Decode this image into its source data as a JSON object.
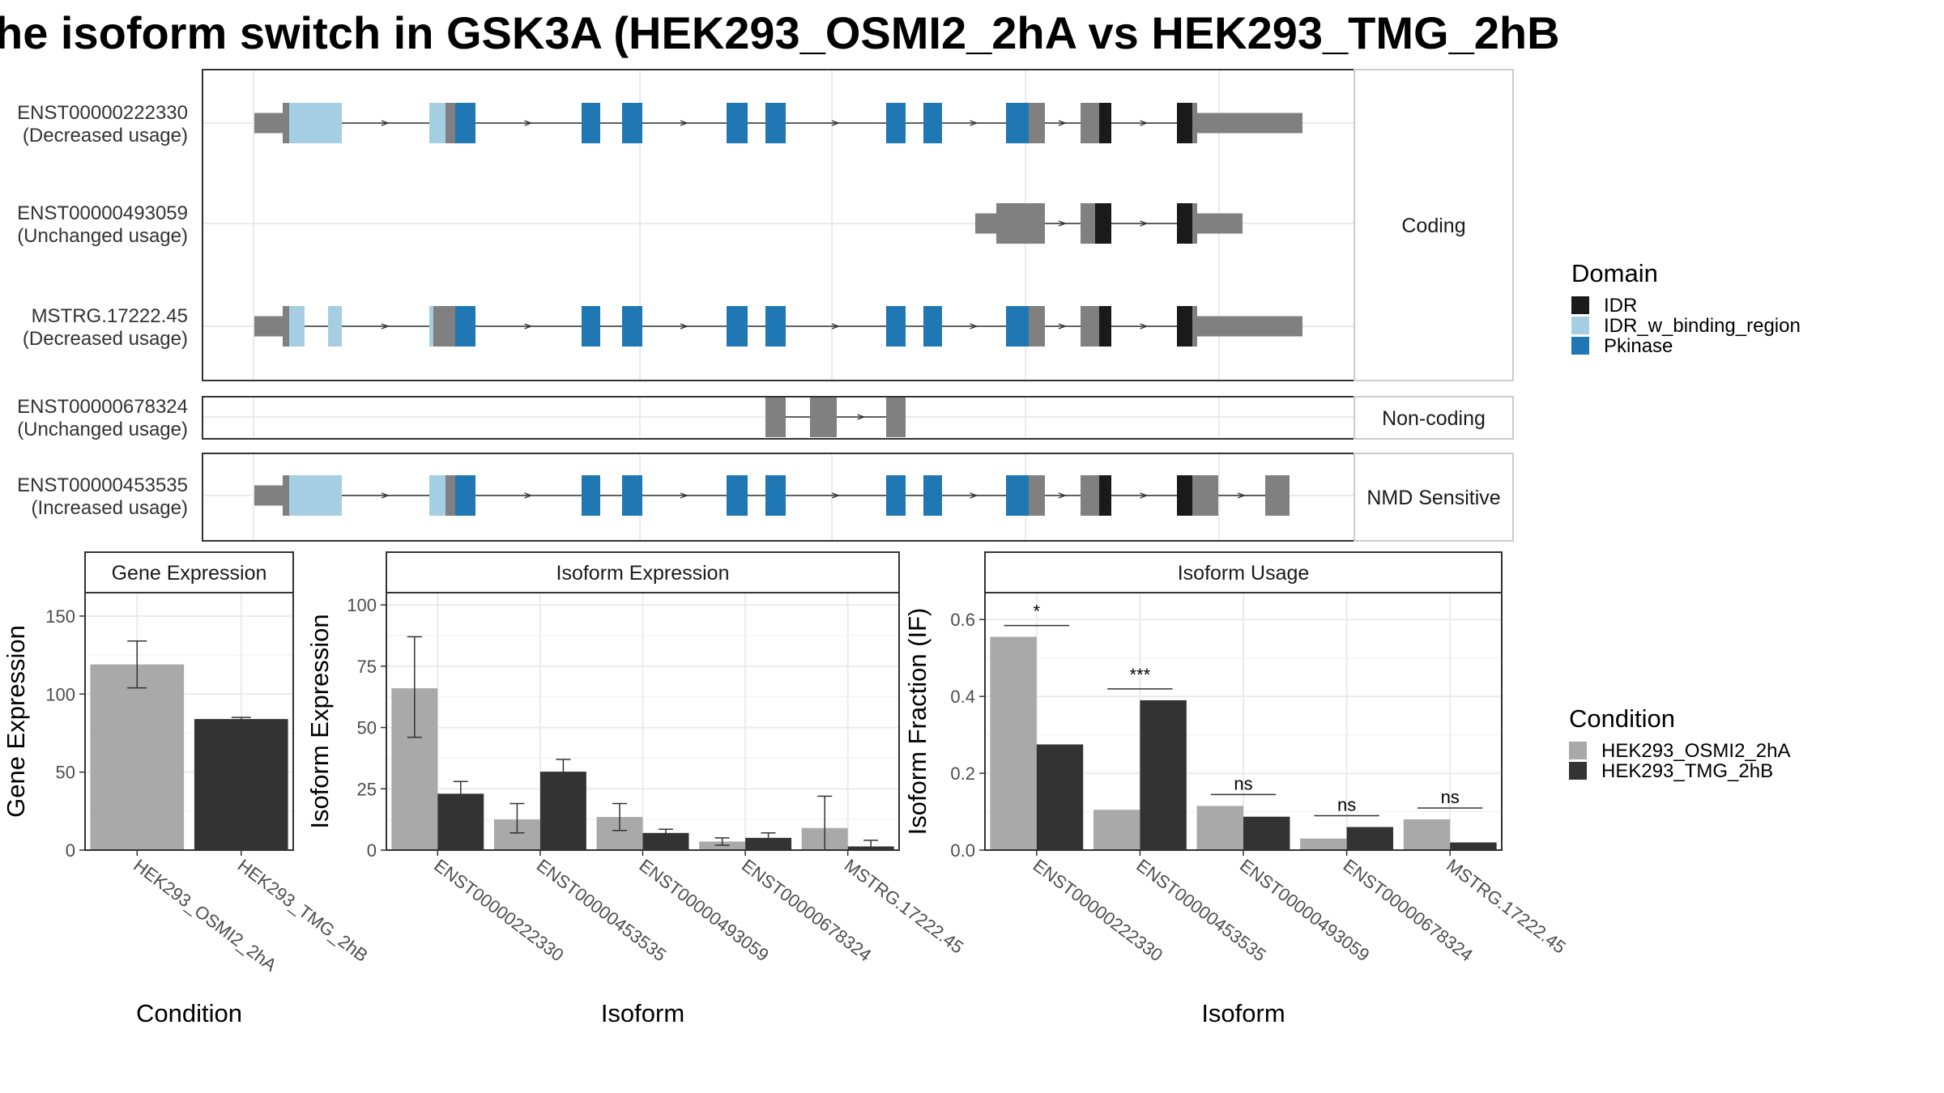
{
  "title": "he isoform switch in GSK3A (HEK293_OSMI2_2hA vs HEK293_TMG_2hB",
  "colors": {
    "IDR": "#1a1a1a",
    "IDR_w_binding_region": "#a6cee3",
    "Pkinase": "#1f78b4",
    "noncoding_exon": "#808080",
    "HEK293_OSMI2_2hA": "#a9a9a9",
    "HEK293_TMG_2hB": "#333333"
  },
  "structure": {
    "panels": [
      {
        "label": "Coding",
        "transcripts": [
          {
            "id": "ENST00000222330",
            "usage": "(Decreased usage)"
          },
          {
            "id": "ENST00000493059",
            "usage": "(Unchanged usage)"
          },
          {
            "id": "MSTRG.17222.45",
            "usage": "(Decreased usage)"
          }
        ]
      },
      {
        "label": "Non-coding",
        "transcripts": [
          {
            "id": "ENST00000678324",
            "usage": "(Unchanged usage)"
          }
        ]
      },
      {
        "label": "NMD Sensitive",
        "transcripts": [
          {
            "id": "ENST00000453535",
            "usage": "(Increased usage)"
          }
        ]
      }
    ]
  },
  "legend_domain": {
    "title": "Domain",
    "items": [
      {
        "label": "IDR",
        "color": "#1a1a1a"
      },
      {
        "label": "IDR_w_binding_region",
        "color": "#a6cee3"
      },
      {
        "label": "Pkinase",
        "color": "#1f78b4"
      }
    ]
  },
  "legend_condition": {
    "title": "Condition",
    "items": [
      {
        "label": "HEK293_OSMI2_2hA",
        "color": "#a9a9a9"
      },
      {
        "label": "HEK293_TMG_2hB",
        "color": "#333333"
      }
    ]
  },
  "chart_data": [
    {
      "type": "bar",
      "title": "Gene Expression",
      "xlabel": "Condition",
      "ylabel": "Gene Expression",
      "categories": [
        "HEK293_OSMI2_2hA",
        "HEK293_TMG_2hB"
      ],
      "yticks": [
        "0",
        "50",
        "100",
        "150"
      ],
      "ylim": [
        0,
        165
      ],
      "values": [
        119,
        84
      ],
      "errors": [
        [
          104,
          134
        ],
        [
          83,
          85
        ]
      ]
    },
    {
      "type": "bar",
      "title": "Isoform Expression",
      "xlabel": "Isoform",
      "ylabel": "Isoform Expression",
      "categories": [
        "ENST00000222330",
        "ENST00000453535",
        "ENST00000493059",
        "ENST00000678324",
        "MSTRG.17222.45"
      ],
      "yticks": [
        "0",
        "25",
        "50",
        "75",
        "100"
      ],
      "ylim": [
        0,
        105
      ],
      "series": [
        {
          "name": "HEK293_OSMI2_2hA",
          "values": [
            66,
            12.5,
            13.5,
            3.5,
            9
          ],
          "errors": [
            [
              46,
              87
            ],
            [
              7,
              19
            ],
            [
              8,
              19
            ],
            [
              2,
              5
            ],
            [
              0,
              22
            ]
          ]
        },
        {
          "name": "HEK293_TMG_2hB",
          "values": [
            23,
            32,
            7,
            5,
            1.5
          ],
          "errors": [
            [
              19,
              28
            ],
            [
              27,
              37
            ],
            [
              6,
              8.5
            ],
            [
              3,
              7
            ],
            [
              0,
              4
            ]
          ]
        }
      ]
    },
    {
      "type": "bar",
      "title": "Isoform Usage",
      "xlabel": "Isoform",
      "ylabel": "Isoform Fraction (IF)",
      "categories": [
        "ENST00000222330",
        "ENST00000453535",
        "ENST00000493059",
        "ENST00000678324",
        "MSTRG.17222.45"
      ],
      "yticks": [
        "0.0",
        "0.2",
        "0.4",
        "0.6"
      ],
      "ylim": [
        0,
        0.67
      ],
      "series": [
        {
          "name": "HEK293_OSMI2_2hA",
          "values": [
            0.555,
            0.105,
            0.115,
            0.03,
            0.08
          ]
        },
        {
          "name": "HEK293_TMG_2hB",
          "values": [
            0.275,
            0.39,
            0.087,
            0.06,
            0.02
          ]
        }
      ],
      "significance": [
        "*",
        "***",
        "ns",
        "ns",
        "ns"
      ]
    }
  ]
}
